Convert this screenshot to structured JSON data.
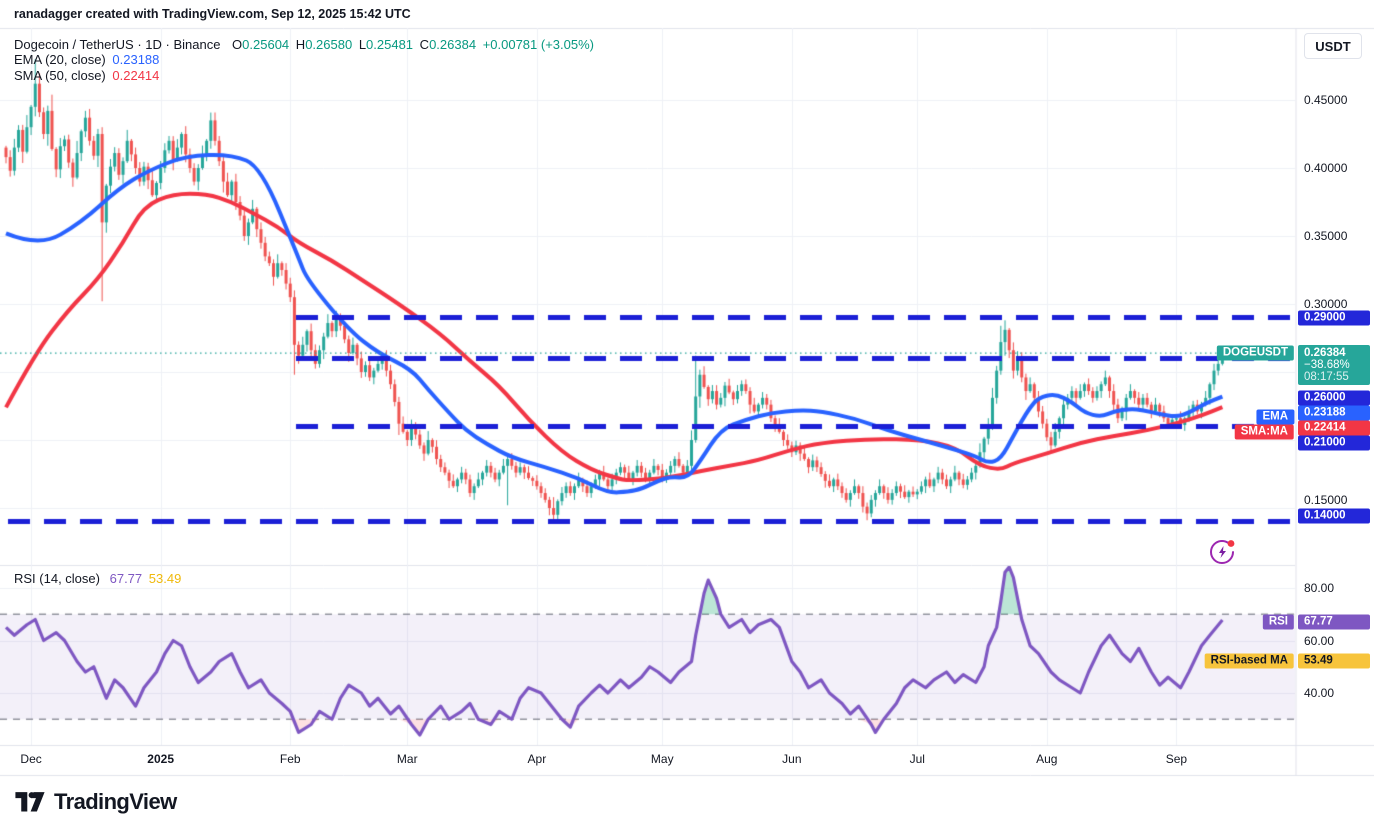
{
  "attribution": "ranadagger created with TradingView.com, Sep 12, 2025 15:42 UTC",
  "legend": {
    "title": "Dogecoin / TetherUS · 1D · Binance",
    "o_label": "O",
    "o": "0.25604",
    "h_label": "H",
    "h": "0.26580",
    "l_label": "L",
    "l": "0.25481",
    "c_label": "C",
    "c": "0.26384",
    "change": "+0.00781 (+3.05%)",
    "ema_label": "EMA (20, close)",
    "ema_value": "0.23188",
    "sma_label": "SMA (50, close)",
    "sma_value": "0.22414",
    "rsi_label": "RSI (14, close)",
    "rsi_value": "67.77",
    "rsi_ma_value": "53.49"
  },
  "price_axis": {
    "currency": "USDT",
    "plain_ticks": [
      "0.45000",
      "0.40000",
      "0.35000",
      "0.30000",
      "0.15000"
    ],
    "level_badges": [
      "0.29000",
      "0.26000",
      "0.21000",
      "0.14000"
    ],
    "ema_badge": "0.23188",
    "sma_badge": "0.22414",
    "countdown": {
      "price": "0.26384",
      "change": "−38.68%",
      "time": "08:17:55"
    }
  },
  "rsi_axis": {
    "ticks": [
      "80.00",
      "60.00",
      "40.00"
    ],
    "rsi_badge": "67.77",
    "ma_badge": "53.49"
  },
  "pane_labels": {
    "symbol": "DOGEUSDT",
    "ema": "EMA",
    "sma": "SMA:MA",
    "rsi": "RSI",
    "rsi_ma": "RSI-based MA"
  },
  "time_axis": {
    "labels": [
      "Dec",
      "2025",
      "Feb",
      "Mar",
      "Apr",
      "May",
      "Jun",
      "Jul",
      "Aug",
      "Sep"
    ]
  },
  "logo_text": "TradingView",
  "colors": {
    "up": "#26a69a",
    "down": "#ef5350",
    "ema": "#2962ff",
    "sma": "#f23645",
    "level": "#1b1fd6",
    "badge_blue": "#2327d9",
    "teal": "#26a69a",
    "purple": "#7e57c2",
    "yellow": "#f7c43c",
    "yellow_line": "#f5c542",
    "grid": "#eef0f6",
    "border": "#e0e3eb",
    "axis_text": "#131722",
    "band": "rgba(126,87,194,0.09)",
    "band_edge": "#787b86",
    "ob_fill": "rgba(34,171,120,0.30)",
    "os_fill": "rgba(247,82,95,0.18)"
  },
  "chart_data": {
    "type": "candlestick",
    "symbol": "DOGEUSDT",
    "exchange": "Binance",
    "interval": "1D",
    "title": "Dogecoin / TetherUS · 1D · Binance",
    "last": {
      "open": 0.25604,
      "high": 0.2658,
      "low": 0.25481,
      "close": 0.26384,
      "change": 0.00781,
      "change_pct": 3.05
    },
    "levels": [
      0.29,
      0.26,
      0.21,
      0.14
    ],
    "close_line": 0.26384,
    "price_ticks": [
      0.45,
      0.4,
      0.35,
      0.3,
      0.25,
      0.2,
      0.15
    ],
    "months_t": [
      6,
      37,
      68,
      96,
      127,
      157,
      188,
      218,
      249,
      280
    ],
    "candles": {
      "first_open": 0.415,
      "closes": [
        0.408,
        0.398,
        0.415,
        0.428,
        0.412,
        0.43,
        0.445,
        0.462,
        0.441,
        0.425,
        0.442,
        0.414,
        0.399,
        0.416,
        0.421,
        0.404,
        0.393,
        0.411,
        0.427,
        0.437,
        0.42,
        0.409,
        0.425,
        0.36,
        0.387,
        0.401,
        0.411,
        0.395,
        0.405,
        0.42,
        0.41,
        0.4,
        0.39,
        0.401,
        0.391,
        0.38,
        0.389,
        0.4,
        0.413,
        0.42,
        0.406,
        0.415,
        0.425,
        0.41,
        0.4,
        0.39,
        0.4,
        0.41,
        0.42,
        0.435,
        0.42,
        0.405,
        0.39,
        0.38,
        0.39,
        0.375,
        0.365,
        0.35,
        0.36,
        0.37,
        0.355,
        0.345,
        0.335,
        0.33,
        0.32,
        0.33,
        0.325,
        0.315,
        0.305,
        0.27,
        0.262,
        0.27,
        0.28,
        0.266,
        0.256,
        0.266,
        0.276,
        0.286,
        0.28,
        0.29,
        0.284,
        0.274,
        0.264,
        0.27,
        0.26,
        0.25,
        0.255,
        0.246,
        0.251,
        0.256,
        0.261,
        0.251,
        0.241,
        0.228,
        0.212,
        0.206,
        0.2,
        0.21,
        0.204,
        0.196,
        0.19,
        0.2,
        0.195,
        0.186,
        0.18,
        0.176,
        0.17,
        0.166,
        0.171,
        0.176,
        0.171,
        0.161,
        0.166,
        0.171,
        0.176,
        0.181,
        0.176,
        0.171,
        0.176,
        0.181,
        0.186,
        0.181,
        0.176,
        0.18,
        0.176,
        0.172,
        0.17,
        0.166,
        0.161,
        0.156,
        0.15,
        0.145,
        0.155,
        0.161,
        0.166,
        0.161,
        0.166,
        0.171,
        0.166,
        0.161,
        0.166,
        0.171,
        0.176,
        0.171,
        0.166,
        0.171,
        0.176,
        0.18,
        0.176,
        0.171,
        0.176,
        0.181,
        0.176,
        0.171,
        0.176,
        0.181,
        0.178,
        0.172,
        0.176,
        0.181,
        0.186,
        0.181,
        0.176,
        0.181,
        0.2,
        0.232,
        0.248,
        0.239,
        0.23,
        0.236,
        0.226,
        0.231,
        0.24,
        0.235,
        0.23,
        0.236,
        0.241,
        0.236,
        0.226,
        0.221,
        0.226,
        0.231,
        0.226,
        0.216,
        0.211,
        0.206,
        0.2,
        0.196,
        0.191,
        0.196,
        0.19,
        0.186,
        0.18,
        0.185,
        0.18,
        0.175,
        0.17,
        0.166,
        0.171,
        0.166,
        0.161,
        0.156,
        0.161,
        0.166,
        0.161,
        0.151,
        0.146,
        0.156,
        0.161,
        0.166,
        0.161,
        0.156,
        0.161,
        0.166,
        0.162,
        0.158,
        0.162,
        0.16,
        0.162,
        0.166,
        0.171,
        0.166,
        0.171,
        0.176,
        0.171,
        0.166,
        0.171,
        0.176,
        0.171,
        0.167,
        0.171,
        0.176,
        0.181,
        0.191,
        0.201,
        0.211,
        0.231,
        0.251,
        0.272,
        0.281,
        0.266,
        0.251,
        0.261,
        0.246,
        0.236,
        0.241,
        0.231,
        0.221,
        0.212,
        0.202,
        0.196,
        0.206,
        0.216,
        0.226,
        0.231,
        0.236,
        0.231,
        0.236,
        0.241,
        0.236,
        0.231,
        0.236,
        0.241,
        0.246,
        0.236,
        0.226,
        0.216,
        0.221,
        0.231,
        0.236,
        0.231,
        0.226,
        0.231,
        0.226,
        0.221,
        0.226,
        0.221,
        0.216,
        0.212,
        0.215,
        0.216,
        0.211,
        0.216,
        0.221,
        0.226,
        0.221,
        0.226,
        0.231,
        0.241,
        0.251,
        0.256,
        0.26384
      ],
      "wick_overrides": {
        "7": [
          0.48,
          0.438
        ],
        "23": [
          0.43,
          0.302
        ],
        "69": [
          0.31,
          0.248
        ],
        "120": [
          0.19,
          0.152
        ],
        "131": [
          0.158,
          0.141
        ],
        "165": [
          0.262,
          0.198
        ],
        "206": [
          0.154,
          0.141
        ],
        "238": [
          0.284,
          0.248
        ],
        "239": [
          0.288,
          0.262
        ],
        "250": [
          0.206,
          0.191
        ]
      }
    },
    "ema20": {
      "t": [
        0,
        8,
        18,
        27,
        34,
        43,
        54,
        61,
        70,
        72,
        82,
        89,
        97,
        101,
        106,
        110,
        115,
        121,
        129,
        137,
        144,
        149,
        152,
        156,
        159,
        163,
        166,
        171,
        177,
        183,
        190,
        195,
        203,
        211,
        219,
        227,
        232,
        235,
        238,
        241,
        243,
        245,
        247,
        251,
        255,
        258,
        262,
        265,
        269,
        272,
        276,
        280,
        283,
        287,
        291
      ],
      "v": [
        0.352,
        0.342,
        0.36,
        0.385,
        0.398,
        0.409,
        0.41,
        0.401,
        0.334,
        0.318,
        0.281,
        0.264,
        0.252,
        0.237,
        0.22,
        0.207,
        0.197,
        0.187,
        0.18,
        0.172,
        0.161,
        0.162,
        0.164,
        0.17,
        0.173,
        0.172,
        0.184,
        0.208,
        0.215,
        0.22,
        0.222,
        0.221,
        0.216,
        0.207,
        0.2,
        0.193,
        0.188,
        0.183,
        0.186,
        0.203,
        0.214,
        0.224,
        0.231,
        0.234,
        0.228,
        0.22,
        0.217,
        0.221,
        0.223,
        0.222,
        0.219,
        0.217,
        0.22,
        0.227,
        0.23188
      ]
    },
    "sma50": {
      "t": [
        0,
        7,
        15,
        22,
        28,
        33,
        40,
        48,
        54,
        59,
        65,
        70,
        78,
        85,
        94,
        104,
        111,
        118,
        125,
        133,
        140,
        146,
        149,
        158,
        166,
        173,
        180,
        188,
        195,
        207,
        219,
        227,
        233,
        238,
        241,
        249,
        257,
        265,
        273,
        281,
        286,
        291
      ],
      "v": [
        0.224,
        0.264,
        0.296,
        0.318,
        0.345,
        0.372,
        0.381,
        0.381,
        0.375,
        0.367,
        0.357,
        0.345,
        0.332,
        0.318,
        0.3,
        0.278,
        0.258,
        0.24,
        0.215,
        0.191,
        0.178,
        0.172,
        0.17,
        0.172,
        0.177,
        0.181,
        0.185,
        0.193,
        0.198,
        0.201,
        0.2,
        0.195,
        0.181,
        0.178,
        0.183,
        0.19,
        0.198,
        0.203,
        0.207,
        0.213,
        0.218,
        0.22414
      ]
    },
    "rsi": {
      "overbought": 70,
      "oversold": 30,
      "ticks": [
        80,
        60,
        40
      ],
      "t": [
        0,
        2,
        5,
        7,
        9,
        12,
        14,
        17,
        19,
        21,
        24,
        26,
        28,
        31,
        33,
        36,
        38,
        40,
        42,
        44,
        46,
        49,
        51,
        54,
        56,
        58,
        61,
        63,
        66,
        68,
        70,
        73,
        75,
        78,
        80,
        82,
        85,
        87,
        89,
        92,
        94,
        97,
        99,
        101,
        104,
        106,
        109,
        111,
        113,
        116,
        118,
        121,
        123,
        125,
        128,
        130,
        133,
        135,
        137,
        140,
        142,
        144,
        147,
        149,
        152,
        154,
        156,
        159,
        161,
        164,
        165,
        166,
        167,
        168,
        170,
        171,
        173,
        176,
        178,
        180,
        183,
        185,
        188,
        190,
        192,
        195,
        197,
        200,
        202,
        204,
        207,
        208,
        210,
        213,
        215,
        217,
        220,
        222,
        225,
        227,
        229,
        232,
        234,
        235,
        237,
        238,
        239,
        240,
        241,
        243,
        245,
        247,
        250,
        252,
        255,
        257,
        259,
        262,
        264,
        267,
        269,
        271,
        274,
        276,
        278,
        281,
        283,
        286,
        288,
        291
      ],
      "v": [
        65,
        62,
        66,
        68,
        60,
        63,
        60,
        52,
        48,
        50,
        38,
        45,
        42,
        35,
        42,
        48,
        55,
        60,
        58,
        50,
        44,
        48,
        52,
        55,
        48,
        42,
        45,
        40,
        36,
        33,
        25,
        28,
        33,
        30,
        38,
        43,
        40,
        35,
        38,
        32,
        35,
        28,
        24,
        30,
        35,
        30,
        33,
        36,
        30,
        28,
        33,
        30,
        38,
        42,
        40,
        36,
        30,
        27,
        35,
        40,
        43,
        40,
        45,
        42,
        46,
        50,
        48,
        44,
        48,
        52,
        62,
        70,
        78,
        83,
        76,
        70,
        65,
        68,
        63,
        66,
        68,
        65,
        52,
        48,
        42,
        45,
        40,
        36,
        32,
        35,
        28,
        25,
        30,
        36,
        42,
        45,
        42,
        45,
        48,
        44,
        47,
        44,
        50,
        58,
        65,
        75,
        86,
        88,
        84,
        68,
        58,
        55,
        48,
        45,
        42,
        40,
        48,
        58,
        62,
        55,
        52,
        57,
        48,
        43,
        46,
        42,
        48,
        58,
        62,
        67.77
      ]
    },
    "rsi_ma": {
      "t": [
        0,
        3,
        9,
        18,
        26,
        33,
        40,
        48,
        54,
        61,
        68,
        75,
        82,
        90,
        97,
        104,
        111,
        118,
        125,
        133,
        140,
        147,
        154,
        161,
        166,
        171,
        176,
        180,
        185,
        190,
        195,
        203,
        209,
        215,
        219,
        224,
        227,
        233,
        236,
        238,
        240,
        243,
        247,
        251,
        255,
        262,
        269,
        276,
        283,
        291
      ],
      "v": [
        79,
        76,
        71,
        60,
        52,
        45,
        42,
        44,
        48,
        45,
        40,
        36,
        37,
        36,
        34,
        35,
        34,
        35,
        37,
        34,
        36,
        40,
        44,
        46,
        52,
        58,
        60,
        62,
        60,
        55,
        50,
        44,
        38,
        40,
        43,
        44,
        47,
        57,
        65,
        70,
        71,
        69,
        64,
        59,
        55,
        52,
        50,
        48,
        49,
        53.49
      ]
    }
  }
}
